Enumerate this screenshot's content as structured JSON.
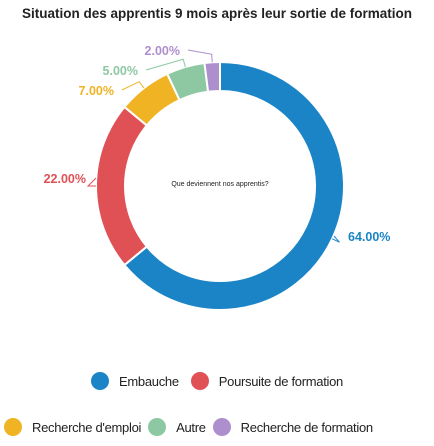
{
  "chart_data": {
    "type": "pie",
    "variant": "donut",
    "title": "Situation des apprentis 9 mois après leur sortie de formation",
    "center_text": "Que deviennent nos apprentis?",
    "categories": [
      "Embauche",
      "Poursuite de formation",
      "Recherche d'emploi",
      "Autre",
      "Recherche de formation"
    ],
    "values": [
      64.0,
      22.0,
      7.0,
      5.0,
      2.0
    ],
    "value_labels": [
      "64.00%",
      "22.00%",
      "7.00%",
      "5.00%",
      "2.00%"
    ],
    "colors": [
      "#1b84c7",
      "#e05156",
      "#f0b323",
      "#8dc8a3",
      "#ad8fce"
    ],
    "legend": {
      "placement": "bottom",
      "items": [
        {
          "label": "Embauche",
          "color": "#1b84c7"
        },
        {
          "label": "Poursuite de formation",
          "color": "#e05156"
        },
        {
          "label": "Recherche d'emploi",
          "color": "#f0b323"
        },
        {
          "label": "Autre",
          "color": "#8dc8a3"
        },
        {
          "label": "Recherche de formation",
          "color": "#ad8fce"
        }
      ]
    }
  }
}
